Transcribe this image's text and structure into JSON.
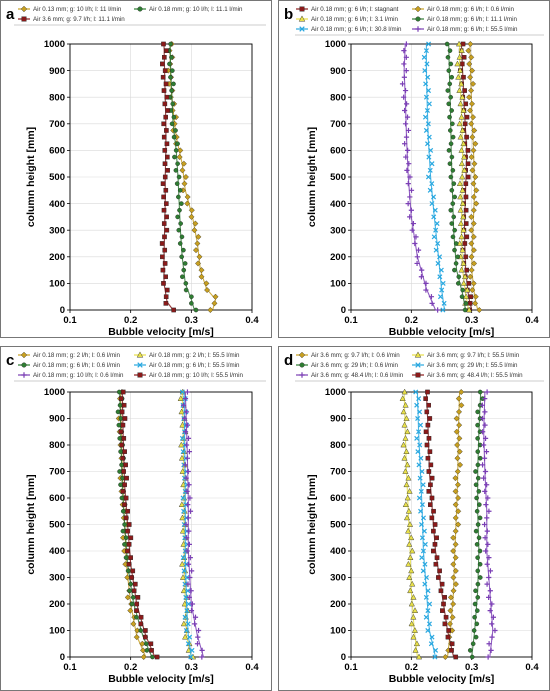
{
  "figure": {
    "y_axis_label": "column height [mm]",
    "x_axis_label": "Bubble velocity  [m/s]"
  },
  "chart_data": [
    {
      "panel": "a",
      "type": "scatter",
      "xlim": [
        0.1,
        0.4
      ],
      "ylim": [
        0,
        1000
      ],
      "x_ticks": [
        "0.1",
        "0.2",
        "0.3",
        "0.4"
      ],
      "y_ticks": [
        "0",
        "100",
        "200",
        "300",
        "400",
        "500",
        "600",
        "700",
        "800",
        "900",
        "1000"
      ],
      "xlabel": "Bubble velocity  [m/s]",
      "ylabel": "column height [mm]",
      "grid": true,
      "legend": "top",
      "series": [
        {
          "name": "Air 0.13 mm; g: 10 l/h; l: 11 l/min",
          "color": "#c8a020",
          "marker": "diamond",
          "points": [
            [
              0.335,
              0
            ],
            [
              0.34,
              40
            ],
            [
              0.325,
              80
            ],
            [
              0.315,
              150
            ],
            [
              0.31,
              250
            ],
            [
              0.302,
              350
            ],
            [
              0.29,
              450
            ],
            [
              0.285,
              550
            ],
            [
              0.275,
              650
            ],
            [
              0.27,
              750
            ],
            [
              0.266,
              850
            ],
            [
              0.265,
              950
            ],
            [
              0.265,
              1000
            ]
          ]
        },
        {
          "name": "Air 0.18 mm; g: 10 l/h; l: 11.1 l/min",
          "color": "#2e7d32",
          "marker": "circle",
          "points": [
            [
              0.305,
              0
            ],
            [
              0.3,
              40
            ],
            [
              0.29,
              100
            ],
            [
              0.285,
              200
            ],
            [
              0.282,
              300
            ],
            [
              0.28,
              400
            ],
            [
              0.278,
              500
            ],
            [
              0.275,
              600
            ],
            [
              0.27,
              700
            ],
            [
              0.268,
              800
            ],
            [
              0.266,
              900
            ],
            [
              0.265,
              1000
            ]
          ]
        },
        {
          "name": "Air 3.6 mm; g: 9.7 l/h; l: 11.1 l/min",
          "color": "#8b1a1a",
          "marker": "square",
          "points": [
            [
              0.27,
              0
            ],
            [
              0.26,
              30
            ],
            [
              0.255,
              100
            ],
            [
              0.255,
              200
            ],
            [
              0.256,
              300
            ],
            [
              0.257,
              400
            ],
            [
              0.257,
              500
            ],
            [
              0.258,
              600
            ],
            [
              0.258,
              700
            ],
            [
              0.257,
              800
            ],
            [
              0.256,
              900
            ],
            [
              0.255,
              1000
            ]
          ]
        }
      ]
    },
    {
      "panel": "b",
      "type": "scatter",
      "xlim": [
        0.1,
        0.4
      ],
      "ylim": [
        0,
        1000
      ],
      "x_ticks": [
        "0.1",
        "0.2",
        "0.3",
        "0.4"
      ],
      "y_ticks": [
        "0",
        "100",
        "200",
        "300",
        "400",
        "500",
        "600",
        "700",
        "800",
        "900",
        "1000"
      ],
      "xlabel": "Bubble velocity  [m/s]",
      "ylabel": "column height [mm]",
      "grid": true,
      "legend": "top",
      "series": [
        {
          "name": "Air 0.18 mm; g: 6 l/h; l: stagnant",
          "color": "#8b1a1a",
          "marker": "square",
          "points": [
            [
              0.3,
              0
            ],
            [
              0.295,
              50
            ],
            [
              0.29,
              150
            ],
            [
              0.288,
              300
            ],
            [
              0.29,
              450
            ],
            [
              0.292,
              600
            ],
            [
              0.288,
              750
            ],
            [
              0.285,
              900
            ],
            [
              0.283,
              1000
            ]
          ]
        },
        {
          "name": "Air 0.18 mm; g: 6 l/h; l: 0.6 l/min",
          "color": "#c8a020",
          "marker": "diamond",
          "points": [
            [
              0.31,
              0
            ],
            [
              0.305,
              50
            ],
            [
              0.3,
              150
            ],
            [
              0.302,
              300
            ],
            [
              0.305,
              450
            ],
            [
              0.303,
              600
            ],
            [
              0.3,
              750
            ],
            [
              0.298,
              900
            ],
            [
              0.297,
              1000
            ]
          ]
        },
        {
          "name": "Air 0.18 mm; g: 6 l/h; l: 3.1 l/min",
          "color": "#e8e04a",
          "marker": "triangle",
          "points": [
            [
              0.295,
              0
            ],
            [
              0.29,
              60
            ],
            [
              0.285,
              150
            ],
            [
              0.283,
              300
            ],
            [
              0.284,
              450
            ],
            [
              0.285,
              600
            ],
            [
              0.283,
              750
            ],
            [
              0.28,
              900
            ],
            [
              0.28,
              1000
            ]
          ]
        },
        {
          "name": "Air 0.18 mm; g: 6 l/h; l: 11.1 l/min",
          "color": "#2e7d32",
          "marker": "circle",
          "points": [
            [
              0.29,
              0
            ],
            [
              0.285,
              60
            ],
            [
              0.275,
              150
            ],
            [
              0.27,
              300
            ],
            [
              0.268,
              450
            ],
            [
              0.266,
              600
            ],
            [
              0.265,
              750
            ],
            [
              0.263,
              900
            ],
            [
              0.262,
              1000
            ]
          ]
        },
        {
          "name": "Air 0.18 mm; g: 6 l/h; l: 30.8 l/min",
          "color": "#29a8e0",
          "marker": "x",
          "points": [
            [
              0.255,
              0
            ],
            [
              0.25,
              80
            ],
            [
              0.245,
              200
            ],
            [
              0.238,
              350
            ],
            [
              0.232,
              500
            ],
            [
              0.228,
              650
            ],
            [
              0.226,
              800
            ],
            [
              0.225,
              900
            ],
            [
              0.225,
              1000
            ]
          ]
        },
        {
          "name": "Air 0.18 mm; g: 6 l/h; l: 55.5 l/min",
          "color": "#7b3fb5",
          "marker": "plus",
          "points": [
            [
              0.24,
              0
            ],
            [
              0.225,
              80
            ],
            [
              0.21,
              200
            ],
            [
              0.2,
              350
            ],
            [
              0.195,
              500
            ],
            [
              0.192,
              650
            ],
            [
              0.19,
              800
            ],
            [
              0.188,
              900
            ],
            [
              0.19,
              1000
            ]
          ]
        }
      ]
    },
    {
      "panel": "c",
      "type": "scatter",
      "xlim": [
        0.1,
        0.4
      ],
      "ylim": [
        0,
        1000
      ],
      "x_ticks": [
        "0.1",
        "0.2",
        "0.3",
        "0.4"
      ],
      "y_ticks": [
        "0",
        "100",
        "200",
        "300",
        "400",
        "500",
        "600",
        "700",
        "800",
        "900",
        "1000"
      ],
      "xlabel": "Bubble velocity  [m/s]",
      "ylabel": "column height [mm]",
      "grid": true,
      "legend": "top",
      "series": [
        {
          "name": "Air 0.18 mm; g: 2 l/h; l: 0.6 l/min",
          "color": "#c8a020",
          "marker": "diamond",
          "points": [
            [
              0.225,
              0
            ],
            [
              0.21,
              80
            ],
            [
              0.2,
              200
            ],
            [
              0.193,
              350
            ],
            [
              0.19,
              500
            ],
            [
              0.187,
              650
            ],
            [
              0.185,
              800
            ],
            [
              0.183,
              1000
            ]
          ]
        },
        {
          "name": "Air 0.18 mm; g: 2 l/h; l: 55.5 l/min",
          "color": "#e8e04a",
          "marker": "triangle",
          "points": [
            [
              0.3,
              0
            ],
            [
              0.292,
              80
            ],
            [
              0.29,
              200
            ],
            [
              0.288,
              400
            ],
            [
              0.288,
              600
            ],
            [
              0.287,
              800
            ],
            [
              0.285,
              1000
            ]
          ]
        },
        {
          "name": "Air 0.18 mm; g: 6 l/h; l: 0.6 l/min",
          "color": "#2e7d32",
          "marker": "circle",
          "points": [
            [
              0.235,
              0
            ],
            [
              0.22,
              80
            ],
            [
              0.205,
              200
            ],
            [
              0.195,
              350
            ],
            [
              0.19,
              500
            ],
            [
              0.186,
              650
            ],
            [
              0.184,
              800
            ],
            [
              0.182,
              1000
            ]
          ]
        },
        {
          "name": "Air 0.18 mm; g: 6 l/h; l: 55.5 l/min",
          "color": "#29a8e0",
          "marker": "x",
          "points": [
            [
              0.3,
              0
            ],
            [
              0.295,
              80
            ],
            [
              0.292,
              200
            ],
            [
              0.29,
              400
            ],
            [
              0.29,
              600
            ],
            [
              0.289,
              800
            ],
            [
              0.288,
              1000
            ]
          ]
        },
        {
          "name": "Air 0.18 mm; g: 10 l/h; l: 0.6 l/min",
          "color": "#7b3fb5",
          "marker": "plus",
          "points": [
            [
              0.32,
              0
            ],
            [
              0.31,
              80
            ],
            [
              0.3,
              200
            ],
            [
              0.295,
              400
            ],
            [
              0.295,
              600
            ],
            [
              0.293,
              800
            ],
            [
              0.29,
              1000
            ]
          ]
        },
        {
          "name": "Air 0.18 mm; g: 10 l/h; l: 55.5 l/min",
          "color": "#8b1a1a",
          "marker": "square",
          "points": [
            [
              0.24,
              0
            ],
            [
              0.225,
              80
            ],
            [
              0.21,
              200
            ],
            [
              0.2,
              350
            ],
            [
              0.195,
              500
            ],
            [
              0.19,
              650
            ],
            [
              0.188,
              800
            ],
            [
              0.186,
              1000
            ]
          ]
        }
      ]
    },
    {
      "panel": "d",
      "type": "scatter",
      "xlim": [
        0.1,
        0.4
      ],
      "ylim": [
        0,
        1000
      ],
      "x_ticks": [
        "0.1",
        "0.2",
        "0.3",
        "0.4"
      ],
      "y_ticks": [
        "0",
        "100",
        "200",
        "300",
        "400",
        "500",
        "600",
        "700",
        "800",
        "900",
        "1000"
      ],
      "xlabel": "Bubble velocity  [m/s]",
      "ylabel": "column height [mm]",
      "grid": true,
      "legend": "top",
      "series": [
        {
          "name": "Air 3.6 mm; g: 9.7 l/h; l: 0.6 l/min",
          "color": "#c8a020",
          "marker": "diamond",
          "points": [
            [
              0.26,
              0
            ],
            [
              0.265,
              100
            ],
            [
              0.27,
              250
            ],
            [
              0.272,
              400
            ],
            [
              0.275,
              550
            ],
            [
              0.277,
              700
            ],
            [
              0.278,
              850
            ],
            [
              0.28,
              1000
            ]
          ]
        },
        {
          "name": "Air 3.6 mm; g: 9.7 l/h; l: 55.5 l/min",
          "color": "#e8e04a",
          "marker": "triangle",
          "points": [
            [
              0.21,
              0
            ],
            [
              0.205,
              100
            ],
            [
              0.2,
              250
            ],
            [
              0.198,
              400
            ],
            [
              0.195,
              550
            ],
            [
              0.192,
              700
            ],
            [
              0.19,
              850
            ],
            [
              0.188,
              1000
            ]
          ]
        },
        {
          "name": "Air 3.6 mm; g: 29 l/h; l: 0.6 l/min",
          "color": "#2e7d32",
          "marker": "circle",
          "points": [
            [
              0.3,
              0
            ],
            [
              0.305,
              100
            ],
            [
              0.31,
              250
            ],
            [
              0.312,
              400
            ],
            [
              0.31,
              550
            ],
            [
              0.31,
              700
            ],
            [
              0.312,
              850
            ],
            [
              0.315,
              1000
            ]
          ]
        },
        {
          "name": "Air 3.6 mm; g: 29 l/h; l: 55.5 l/min",
          "color": "#29a8e0",
          "marker": "x",
          "points": [
            [
              0.24,
              0
            ],
            [
              0.23,
              100
            ],
            [
              0.225,
              250
            ],
            [
              0.22,
              400
            ],
            [
              0.218,
              550
            ],
            [
              0.215,
              700
            ],
            [
              0.212,
              850
            ],
            [
              0.21,
              1000
            ]
          ]
        },
        {
          "name": "Air 3.6 mm; g: 48.4 l/h; l: 0.6 l/min",
          "color": "#7b3fb5",
          "marker": "plus",
          "points": [
            [
              0.33,
              0
            ],
            [
              0.335,
              100
            ],
            [
              0.33,
              250
            ],
            [
              0.325,
              400
            ],
            [
              0.325,
              550
            ],
            [
              0.322,
              700
            ],
            [
              0.32,
              850
            ],
            [
              0.322,
              1000
            ]
          ]
        },
        {
          "name": "Air 3.6 mm; g: 48.4 l/h; l: 55.5 l/min",
          "color": "#8b1a1a",
          "marker": "square",
          "points": [
            [
              0.27,
              0
            ],
            [
              0.26,
              100
            ],
            [
              0.25,
              250
            ],
            [
              0.24,
              400
            ],
            [
              0.235,
              550
            ],
            [
              0.23,
              700
            ],
            [
              0.228,
              850
            ],
            [
              0.225,
              1000
            ]
          ]
        }
      ]
    }
  ]
}
